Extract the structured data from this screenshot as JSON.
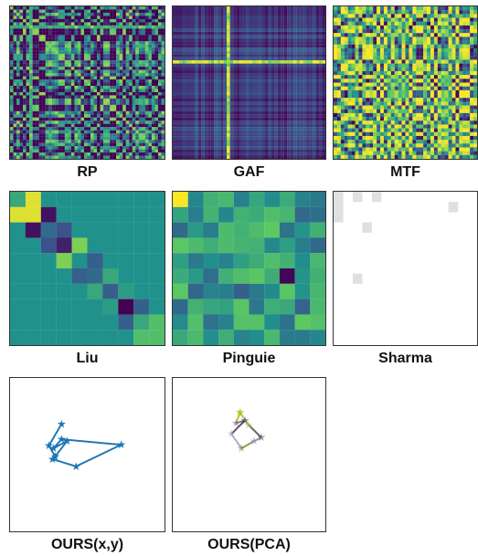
{
  "labels": {
    "rp": "RP",
    "gaf": "GAF",
    "mtf": "MTF",
    "liu": "Liu",
    "pinguie": "Pinguie",
    "sharma": "Sharma",
    "ours_xy": "OURS(x,y)",
    "ours_pca": "OURS(PCA)"
  },
  "colors": {
    "viridis_dark": "#440154",
    "viridis_mid": "#21918c",
    "viridis_bright": "#fde725",
    "ours_xy_line": "#1f77b4",
    "sharma_cell": "#e0e0e0"
  }
}
